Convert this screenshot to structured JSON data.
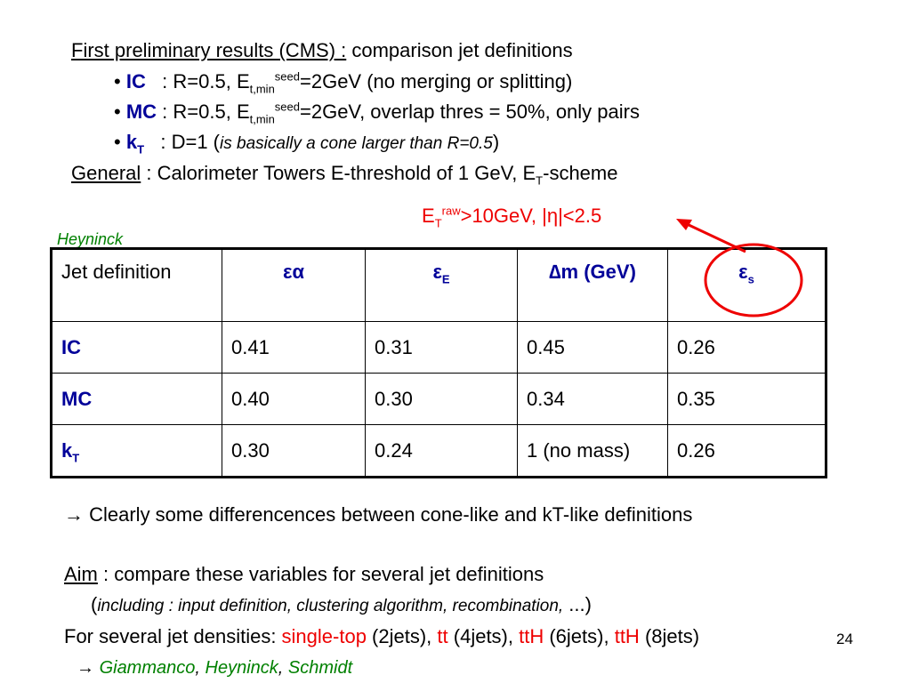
{
  "header": {
    "title_label": "First preliminary results (CMS) :",
    "title_rest": "comparison jet definitions",
    "bullets": [
      {
        "algo": "IC",
        "pre": ": R=0.5, E",
        "sub": "t,min",
        "sup": "seed",
        "post": "=2GeV (no merging or splitting)"
      },
      {
        "algo": "MC",
        "pre": ": R=0.5, E",
        "sub": "t,min",
        "sup": "seed",
        "post": "=2GeV, overlap thres = 50%, only pairs"
      },
      {
        "algo": "k",
        "algo_sub": "T",
        "pre": ": D=1 (",
        "note": "is basically a cone larger than R=0.5",
        "post": ")"
      }
    ],
    "general_label": "General",
    "general_text": ": Calorimeter Towers E-threshold of 1 GeV, E",
    "general_sub": "T",
    "general_end": "-scheme"
  },
  "cut_label": {
    "pre": "E",
    "sub": "T",
    "sup": "raw",
    "post": ">10GeV, |η|<2.5"
  },
  "author_tag": "Heyninck",
  "table": {
    "headers": [
      "Jet definition",
      "εα",
      "ε",
      "∆m (GeV)",
      "ε"
    ],
    "header_subs": [
      "",
      "",
      "E",
      "",
      "s"
    ],
    "rows": [
      {
        "name": "IC",
        "name_sub": "",
        "cells": [
          "0.41",
          "0.31",
          "0.45",
          "0.26"
        ]
      },
      {
        "name": "MC",
        "name_sub": "",
        "cells": [
          "0.40",
          "0.30",
          "0.34",
          "0.35"
        ]
      },
      {
        "name": "k",
        "name_sub": "T",
        "cells": [
          "0.30",
          "0.24",
          "1 (no mass)",
          "0.26"
        ]
      }
    ]
  },
  "conclusion": "→ Clearly some differencences between cone-like and kT-like definitions",
  "aim": {
    "label": "Aim",
    "text": ": compare these variables for several jet definitions",
    "paren_open": "(",
    "paren_text": "including : input definition, clustering algorithm, recombination,",
    "paren_close": " ...)"
  },
  "densities": {
    "pre": "For several jet densities: ",
    "items": [
      {
        "name": "single-top",
        "count": " (2jets), "
      },
      {
        "name": "tt",
        "count": " (4jets), "
      },
      {
        "name": "ttH",
        "count": " (6jets), "
      },
      {
        "name": "ttH",
        "count": " (8jets)"
      }
    ]
  },
  "page_number": "24",
  "authors": {
    "arrow": "→ ",
    "names": [
      "Giammanco",
      "Heyninck",
      "Schmidt"
    ],
    "sep": ", "
  },
  "colors": {
    "blue": "#000099",
    "red": "#ee0000",
    "green": "#008000"
  }
}
